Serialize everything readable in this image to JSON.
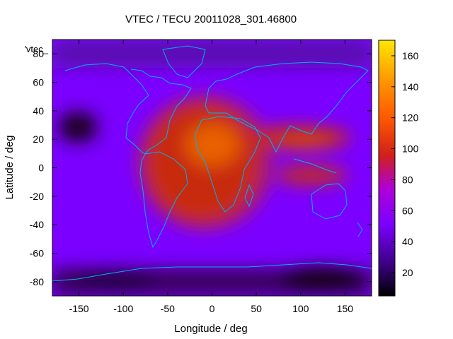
{
  "chart_data": {
    "type": "heatmap",
    "title": "VTEC / TECU 20011028_301.46800",
    "xlabel": "Longitude / deg",
    "ylabel": "Latitude / deg",
    "key_label": "'vtec_",
    "xlim": [
      -180,
      180
    ],
    "ylim": [
      -90,
      90
    ],
    "x_ticks": [
      -150,
      -100,
      -50,
      0,
      50,
      100,
      150
    ],
    "y_ticks": [
      -80,
      -60,
      -40,
      -20,
      0,
      20,
      40,
      60,
      80
    ],
    "colorbar": {
      "range": [
        5,
        170
      ],
      "ticks": [
        20,
        40,
        60,
        80,
        100,
        120,
        140,
        160
      ],
      "colormap": [
        "#000000",
        "#3a0080",
        "#7b00ff",
        "#b000d8",
        "#d0201a",
        "#ff5a00",
        "#ff9a00",
        "#ffe600"
      ]
    },
    "features": {
      "peak_region": {
        "lon": [
          -80,
          120
        ],
        "lat": [
          -50,
          50
        ],
        "approx_vtec": 100
      },
      "max_near": {
        "lon": 10,
        "lat": 18,
        "approx_vtec": 115
      },
      "background_vtec": 40,
      "polar_minimum_vtec": 10
    },
    "coastline_color": "#00b0e8"
  }
}
